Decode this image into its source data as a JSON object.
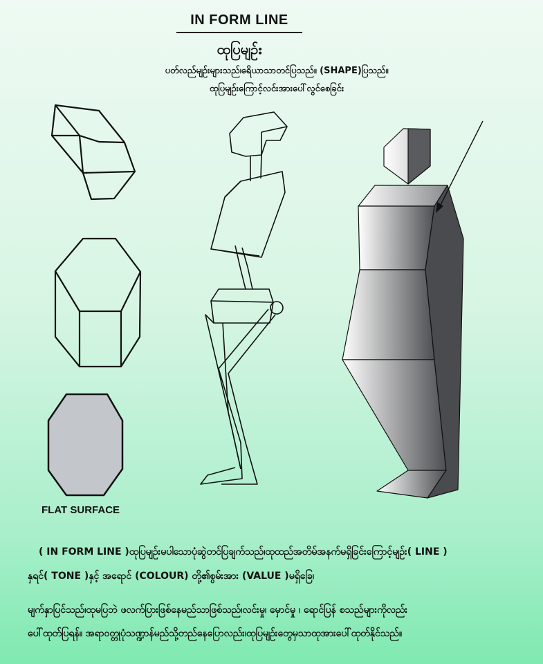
{
  "header": {
    "title": "IN FORM LINE",
    "subtitle": "ထုပြမျဉ်း",
    "description_line1": "ပတ်လည်မျဉ်းများသည်၊ရေိယာသာတင်ပြသည်။ (SHAPE)ပြသည်။",
    "description_line2": "ထုပြမျဉ်းကြောင့်လင်းအားပေါ်လွင်စေခြင်း"
  },
  "labels": {
    "flat_surface": "FLAT SURFACE"
  },
  "body": {
    "line1": "( IN FORM LINE )ထုပြမျဉ်းမပါသောပုံဆွဲတင်ပြချက်သည်၊ထုထည်အတိမ်အနက်မရှိခြင်းကြောင့်မျဉ်း( LINE )",
    "line2": "နှရင်( TONE )နှင့် အရောင် (COLOUR) တို့၏စွမ်းအား (VALUE )မရှိခြေ၊",
    "line3": "မျက်နှာပြင်သည်၊ထုမပြဘဲ ဖလက်ပြားဖြစ်နေမည်သာဖြစ်သည်၊လင်းမှု၊ မှောင်မှု ၊ ရောင်ပြန် စသည်များကိုလည်း",
    "line4": "ပေါ်ထုတ်ပြရန်။ အရာဝတ္တုပုံသဏ္ဍာန်မည်သို့တည်နေပြောလည်း၊ထုပြမျဉ်းတွေမှသာထုအားပေါ်ထုတ်နိုင်သည်။"
  },
  "colors": {
    "flat_fill": "#c3c7cc",
    "shadow_side": "#4a4b4f",
    "gradient_light": "#ffffff",
    "gradient_dark": "#4e4f52"
  }
}
